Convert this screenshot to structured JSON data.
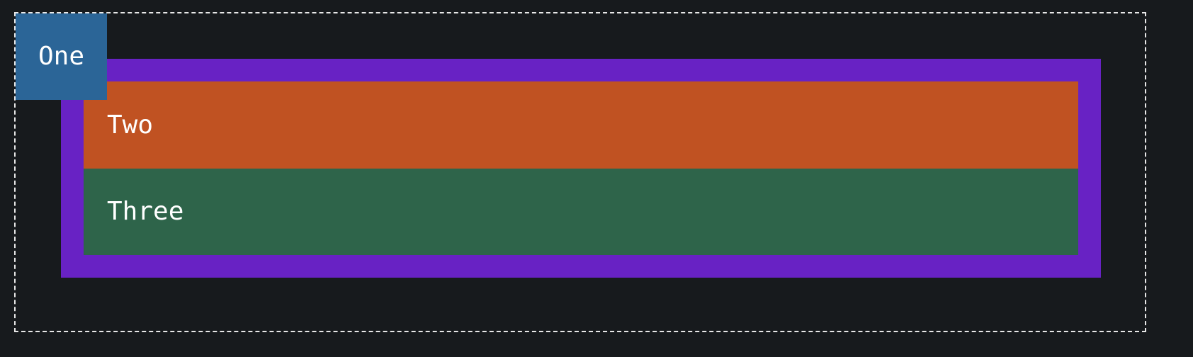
{
  "boxes": {
    "one": {
      "label": "One",
      "color": "#2b6597"
    },
    "two": {
      "label": "Two",
      "color": "#c05222"
    },
    "three": {
      "label": "Three",
      "color": "#2e644a"
    }
  },
  "frame": {
    "container_color": "#6822c4",
    "outline_style": "dashed",
    "background_color": "#171a1d"
  }
}
